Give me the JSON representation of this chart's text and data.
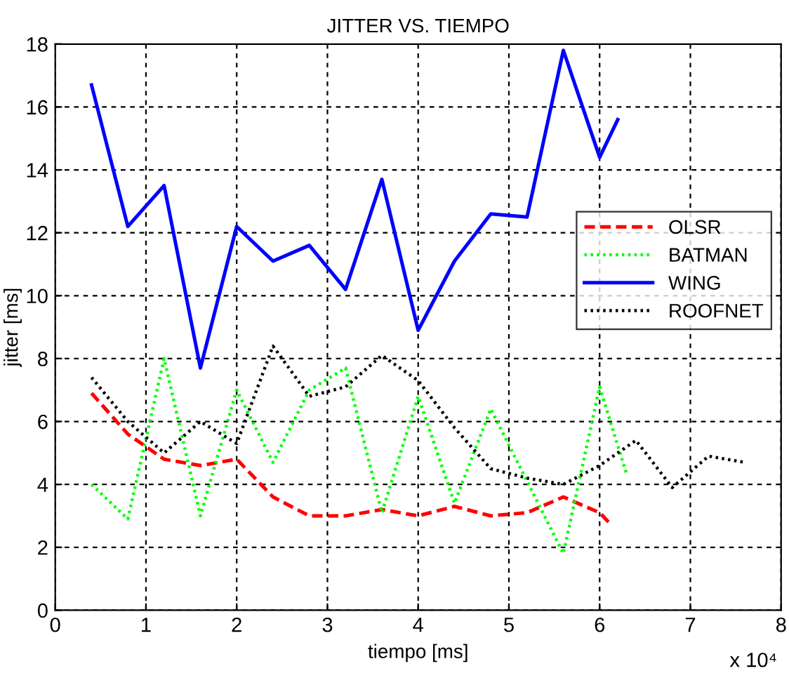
{
  "chart_data": {
    "type": "line",
    "title": "JITTER VS. TIEMPO",
    "xlabel": "tiempo [ms]",
    "ylabel": "jitter [ms]",
    "annotations": [
      "x 10⁴"
    ],
    "xlim": [
      0,
      8
    ],
    "xticks": [
      0,
      1,
      2,
      3,
      4,
      5,
      6,
      7,
      8
    ],
    "ylim": [
      0,
      18
    ],
    "yticks": [
      0,
      2,
      4,
      6,
      8,
      10,
      12,
      14,
      16,
      18
    ],
    "grid": true,
    "legend": "right",
    "series": [
      {
        "name": "OLSR",
        "color": "#ff0000",
        "line_style": "dashed",
        "x": [
          0.4,
          0.8,
          1.2,
          1.6,
          2.0,
          2.4,
          2.8,
          3.2,
          3.6,
          4.0,
          4.4,
          4.8,
          5.2,
          5.6,
          6.0,
          6.1
        ],
        "values": [
          6.9,
          5.6,
          4.8,
          4.6,
          4.8,
          3.6,
          3.0,
          3.0,
          3.2,
          3.0,
          3.3,
          3.0,
          3.1,
          3.6,
          3.1,
          2.8
        ]
      },
      {
        "name": "BATMAN",
        "color": "#00ff00",
        "line_style": "dotted",
        "x": [
          0.4,
          0.8,
          1.2,
          1.6,
          2.0,
          2.4,
          2.8,
          3.2,
          3.6,
          4.0,
          4.4,
          4.8,
          5.6,
          6.0,
          6.3
        ],
        "values": [
          4.0,
          2.9,
          8.0,
          3.0,
          7.0,
          4.7,
          7.0,
          7.7,
          3.1,
          6.8,
          3.4,
          6.4,
          1.8,
          7.1,
          4.3
        ]
      },
      {
        "name": "WING",
        "color": "#0000ff",
        "line_style": "solid",
        "x": [
          0.4,
          0.8,
          1.2,
          1.6,
          2.0,
          2.4,
          2.8,
          3.2,
          3.6,
          4.0,
          4.4,
          4.8,
          5.2,
          5.6,
          6.0,
          6.2
        ],
        "values": [
          16.7,
          12.2,
          13.5,
          7.7,
          12.2,
          11.1,
          11.6,
          10.2,
          13.7,
          8.9,
          11.1,
          12.6,
          12.5,
          17.8,
          14.4,
          15.6
        ]
      },
      {
        "name": "ROOFNET",
        "color": "#000000",
        "line_style": "dotted",
        "x": [
          0.4,
          0.8,
          1.2,
          1.6,
          2.0,
          2.4,
          2.8,
          3.2,
          3.6,
          4.0,
          4.4,
          4.8,
          5.2,
          5.6,
          6.0,
          6.4,
          6.8,
          7.2,
          7.6
        ],
        "values": [
          7.4,
          6.0,
          5.0,
          6.0,
          5.3,
          8.4,
          6.8,
          7.1,
          8.1,
          7.3,
          5.8,
          4.5,
          4.2,
          4.0,
          4.6,
          5.4,
          3.9,
          4.9,
          4.7
        ]
      }
    ]
  }
}
